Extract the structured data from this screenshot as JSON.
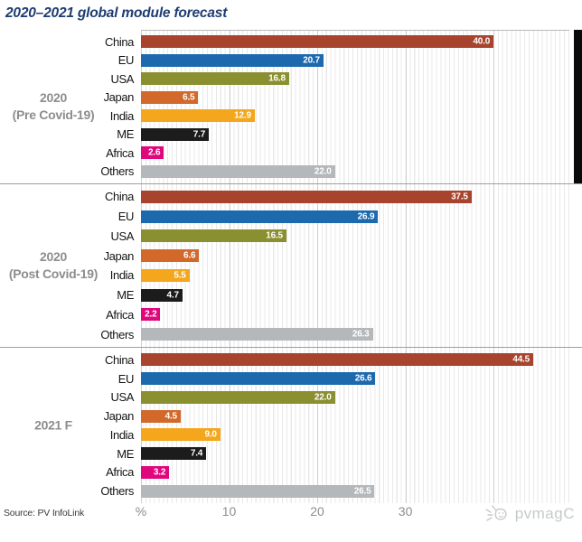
{
  "title": "2020–2021 global module forecast",
  "source": "Source: PV InfoLink",
  "watermark": {
    "text": "pvmagC",
    "icon": "sun-doodle-icon"
  },
  "colors": {
    "title_text": "#1e3d72",
    "group_separator": "#9f9f9f",
    "axis_text": "#8d8d8d",
    "watermark_text": "#c5c9cc",
    "value_label_text": "#ffffff"
  },
  "chart_data": {
    "type": "bar",
    "orientation": "horizontal",
    "title": "2020–2021 global module forecast",
    "xlabel": "%",
    "xlim": [
      0,
      48.6
    ],
    "x_ticks": [
      10,
      20,
      30
    ],
    "grid": {
      "minor_step": 0.5,
      "major_step": 10,
      "grid_on": true
    },
    "legend": "none",
    "categories": [
      "China",
      "EU",
      "USA",
      "Japan",
      "India",
      "ME",
      "Africa",
      "Others"
    ],
    "category_colors": {
      "China": "#a8442e",
      "EU": "#1c69ae",
      "USA": "#8a9030",
      "Japan": "#d2692a",
      "India": "#f4a71d",
      "ME": "#1c1c1c",
      "Africa": "#e0077d",
      "Others": "#b4b8bb"
    },
    "groups": [
      {
        "label": [
          "2020",
          "(Pre Covid-19)"
        ],
        "values": [
          40.0,
          20.7,
          16.8,
          6.5,
          12.9,
          7.7,
          2.6,
          22.0
        ]
      },
      {
        "label": [
          "2020",
          "(Post Covid-19)"
        ],
        "values": [
          37.5,
          26.9,
          16.5,
          6.6,
          5.5,
          4.7,
          2.2,
          26.3
        ]
      },
      {
        "label": [
          "2021 F"
        ],
        "values": [
          44.5,
          26.6,
          22.0,
          4.5,
          9.0,
          7.4,
          3.2,
          26.5
        ]
      }
    ]
  }
}
